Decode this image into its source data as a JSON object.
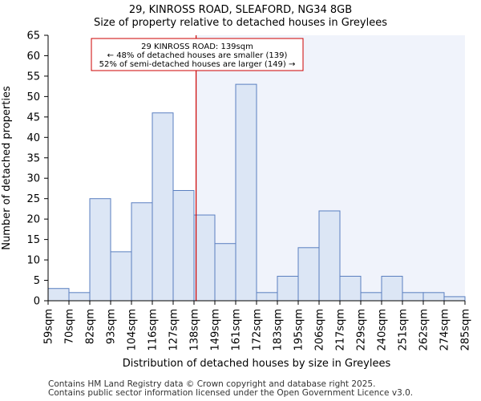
{
  "chart_data": {
    "type": "bar",
    "title": "29, KINROSS ROAD, SLEAFORD, NG34 8GB",
    "subtitle": "Size of property relative to detached houses in Greylees",
    "xlabel": "Distribution of detached houses by size in Greylees",
    "ylabel": "Number of detached properties",
    "bin_edges": [
      "59sqm",
      "70sqm",
      "82sqm",
      "93sqm",
      "104sqm",
      "116sqm",
      "127sqm",
      "138sqm",
      "149sqm",
      "161sqm",
      "172sqm",
      "183sqm",
      "195sqm",
      "206sqm",
      "217sqm",
      "229sqm",
      "240sqm",
      "251sqm",
      "262sqm",
      "274sqm",
      "285sqm"
    ],
    "values": [
      3,
      2,
      25,
      12,
      24,
      46,
      27,
      21,
      14,
      53,
      2,
      6,
      13,
      22,
      6,
      2,
      6,
      2,
      2,
      1
    ],
    "ylim": [
      0,
      65
    ],
    "yticks": [
      0,
      5,
      10,
      15,
      20,
      25,
      30,
      35,
      40,
      45,
      50,
      55,
      60,
      65
    ],
    "marker": {
      "value_sqm": 139,
      "position_bins": 7.1,
      "label_lines": [
        "29 KINROSS ROAD: 139sqm",
        "← 48% of detached houses are smaller (139)",
        "52% of semi-detached houses are larger (149) →"
      ]
    },
    "colors": {
      "bar_fill": "#dce6f5",
      "bar_edge": "#5a7fc0",
      "highlight_bg": "#f0f3fb",
      "marker": "#cc0000",
      "axis": "#000000"
    }
  },
  "footer": {
    "line1": "Contains HM Land Registry data © Crown copyright and database right 2025.",
    "line2": "Contains public sector information licensed under the Open Government Licence v3.0."
  }
}
